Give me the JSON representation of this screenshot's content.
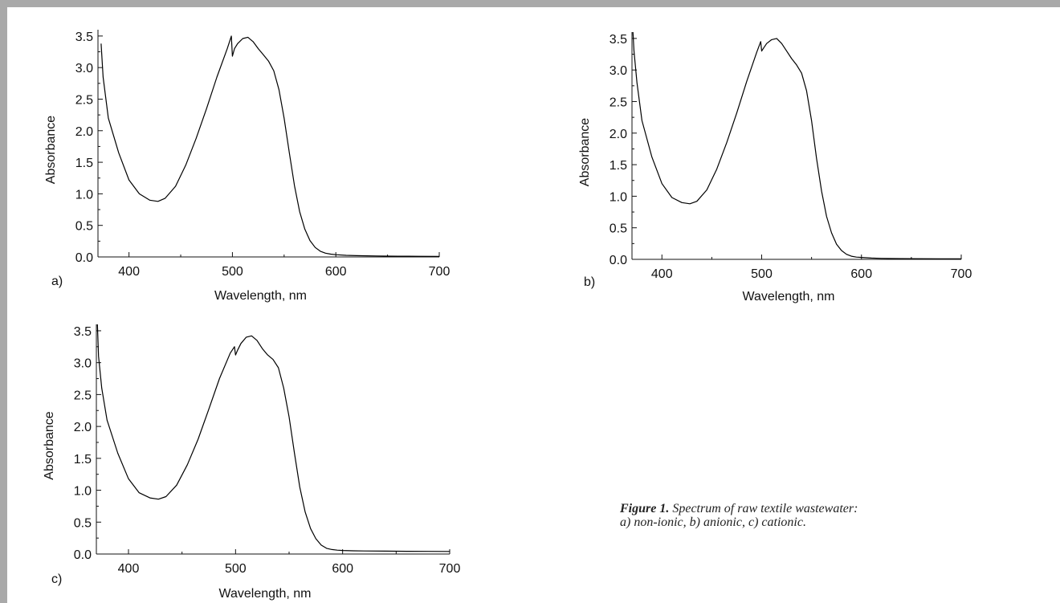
{
  "caption": {
    "figure_label": "Figure 1.",
    "text": "Spectrum of raw textile wastewater:",
    "line2": "a) non-ionic, b) anionic, c) cationic."
  },
  "chart_data": [
    {
      "type": "line",
      "panel_label": "a)",
      "xlabel": "Wavelength, nm",
      "ylabel": "Absorbance",
      "xlim": [
        370,
        700
      ],
      "ylim": [
        0,
        3.6
      ],
      "xticks": [
        400,
        500,
        600,
        700
      ],
      "yticks": [
        0.0,
        0.5,
        1.0,
        1.5,
        2.0,
        2.5,
        3.0,
        3.5
      ],
      "x": [
        373,
        375,
        380,
        390,
        400,
        410,
        420,
        428,
        435,
        445,
        455,
        465,
        475,
        485,
        495,
        499,
        500,
        502,
        505,
        510,
        515,
        520,
        525,
        530,
        535,
        540,
        545,
        550,
        555,
        560,
        565,
        570,
        575,
        580,
        585,
        590,
        595,
        600,
        610,
        620,
        640,
        660,
        680,
        700
      ],
      "y": [
        3.38,
        2.85,
        2.2,
        1.65,
        1.22,
        1.0,
        0.9,
        0.88,
        0.93,
        1.12,
        1.46,
        1.88,
        2.35,
        2.85,
        3.3,
        3.5,
        3.18,
        3.3,
        3.38,
        3.46,
        3.48,
        3.41,
        3.3,
        3.2,
        3.1,
        2.95,
        2.65,
        2.2,
        1.65,
        1.13,
        0.72,
        0.44,
        0.26,
        0.15,
        0.09,
        0.06,
        0.045,
        0.035,
        0.025,
        0.02,
        0.015,
        0.012,
        0.01,
        0.008
      ]
    },
    {
      "type": "line",
      "panel_label": "b)",
      "xlabel": "Wavelength, nm",
      "ylabel": "Absorbance",
      "xlim": [
        370,
        700
      ],
      "ylim": [
        0,
        3.6
      ],
      "xticks": [
        400,
        500,
        600,
        700
      ],
      "yticks": [
        0.0,
        0.5,
        1.0,
        1.5,
        2.0,
        2.5,
        3.0,
        3.5
      ],
      "x": [
        371,
        372,
        375,
        380,
        390,
        400,
        410,
        420,
        428,
        435,
        445,
        455,
        465,
        475,
        485,
        495,
        499,
        500,
        502,
        505,
        510,
        515,
        520,
        525,
        530,
        535,
        540,
        545,
        550,
        555,
        560,
        565,
        570,
        575,
        580,
        585,
        590,
        595,
        600,
        610,
        620,
        640,
        660,
        680,
        700
      ],
      "y": [
        3.6,
        3.3,
        2.8,
        2.2,
        1.62,
        1.2,
        0.98,
        0.9,
        0.88,
        0.92,
        1.1,
        1.43,
        1.85,
        2.32,
        2.82,
        3.28,
        3.45,
        3.3,
        3.35,
        3.42,
        3.48,
        3.5,
        3.42,
        3.3,
        3.18,
        3.08,
        2.95,
        2.67,
        2.2,
        1.6,
        1.08,
        0.68,
        0.42,
        0.24,
        0.14,
        0.08,
        0.05,
        0.035,
        0.03,
        0.02,
        0.015,
        0.012,
        0.01,
        0.008,
        0.007
      ]
    },
    {
      "type": "line",
      "panel_label": "c)",
      "xlabel": "Wavelength, nm",
      "ylabel": "Absorbance",
      "xlim": [
        370,
        700
      ],
      "ylim": [
        0,
        3.6
      ],
      "xticks": [
        400,
        500,
        600,
        700
      ],
      "yticks": [
        0.0,
        0.5,
        1.0,
        1.5,
        2.0,
        2.5,
        3.0,
        3.5
      ],
      "x": [
        371,
        372,
        375,
        380,
        390,
        400,
        410,
        420,
        428,
        435,
        445,
        455,
        465,
        475,
        485,
        495,
        499,
        500,
        502,
        505,
        510,
        515,
        520,
        525,
        530,
        535,
        540,
        545,
        550,
        555,
        560,
        565,
        570,
        575,
        580,
        585,
        590,
        595,
        600,
        610,
        620,
        640,
        660,
        680,
        700
      ],
      "y": [
        3.6,
        3.1,
        2.6,
        2.1,
        1.58,
        1.18,
        0.96,
        0.88,
        0.86,
        0.9,
        1.08,
        1.4,
        1.8,
        2.27,
        2.75,
        3.15,
        3.25,
        3.12,
        3.2,
        3.3,
        3.4,
        3.42,
        3.35,
        3.22,
        3.12,
        3.05,
        2.92,
        2.6,
        2.15,
        1.58,
        1.05,
        0.66,
        0.4,
        0.24,
        0.14,
        0.09,
        0.07,
        0.06,
        0.055,
        0.05,
        0.048,
        0.045,
        0.043,
        0.042,
        0.04
      ]
    }
  ]
}
